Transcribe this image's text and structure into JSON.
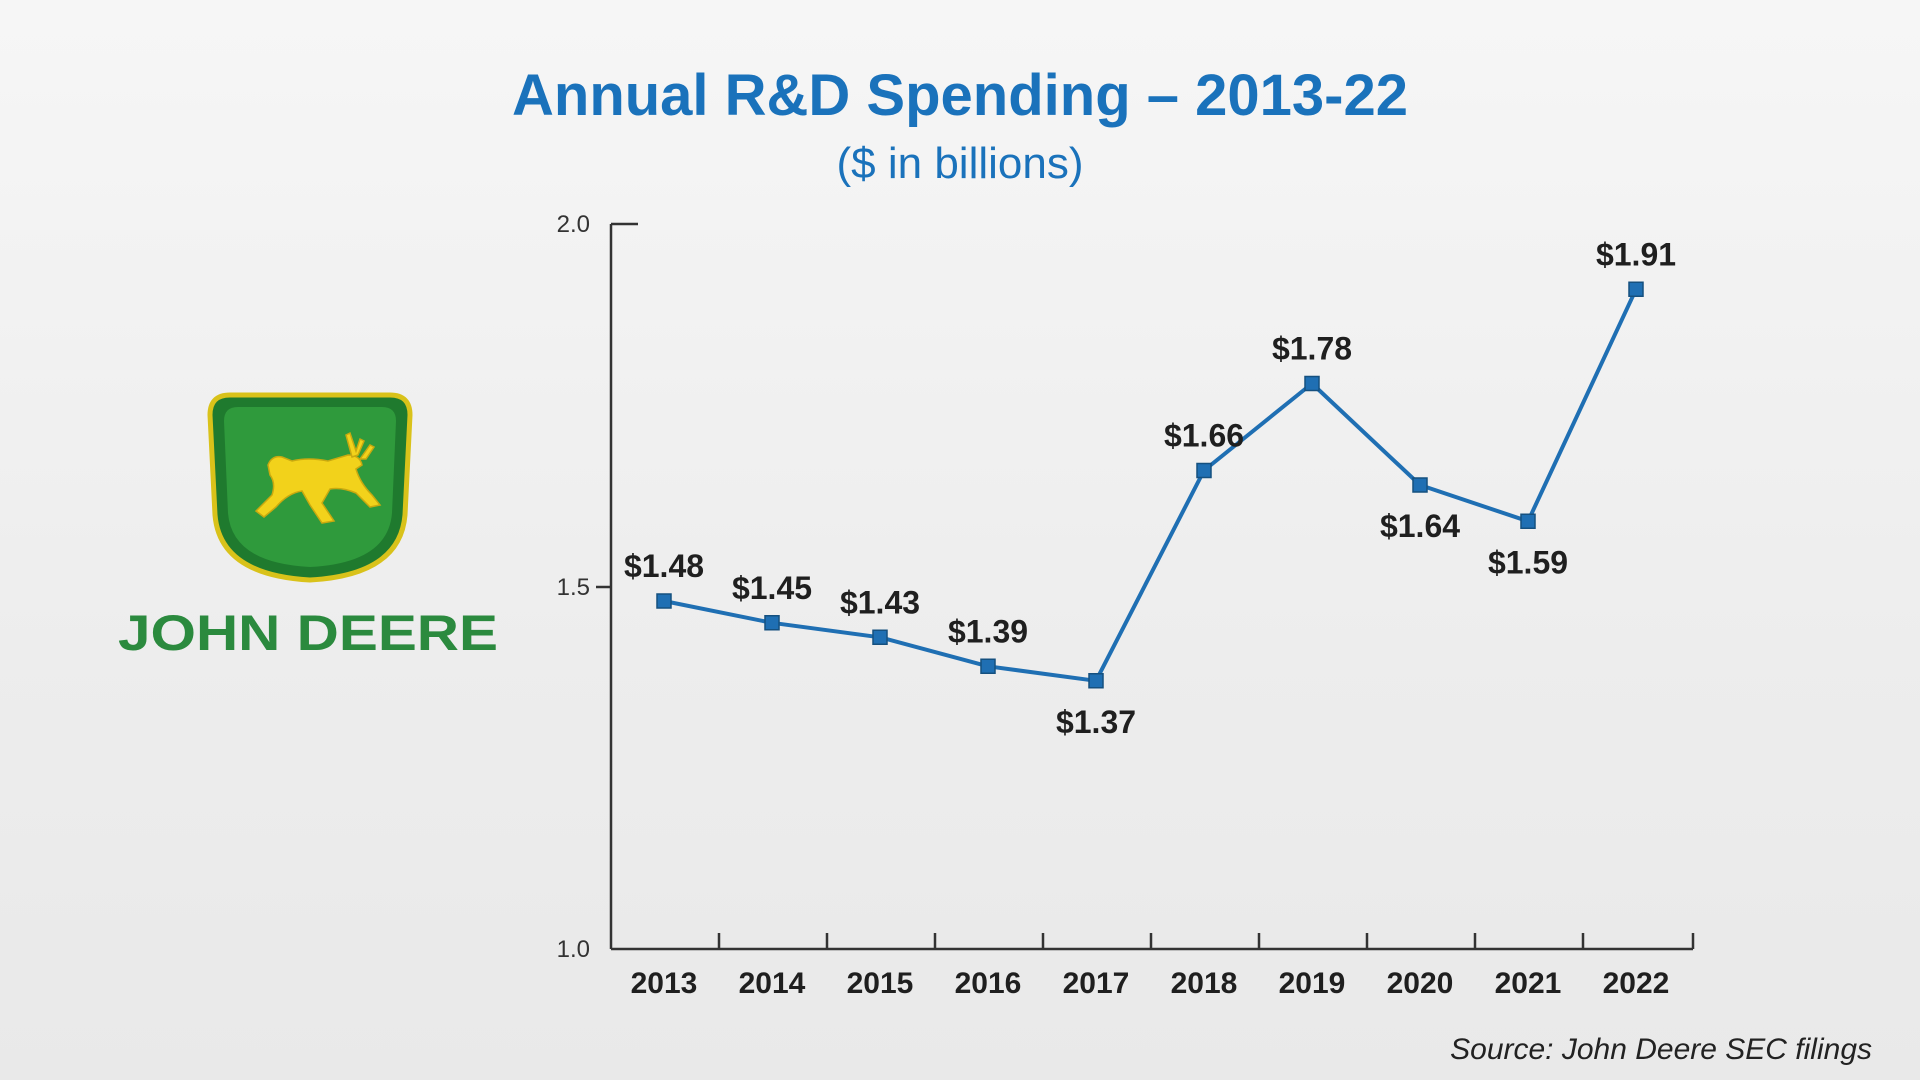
{
  "brand": {
    "name_main": "JOHN DEERE",
    "logo_icon": "leaping-deer-logo",
    "green": "#2b8a3e",
    "yellow": "#f2d21b"
  },
  "colors": {
    "title": "#1a72bb",
    "line": "#1f6fb3",
    "marker": "#1f6fb3",
    "axis": "#333333",
    "text": "#1f1f1f"
  },
  "source": "Source: John Deere SEC filings",
  "chart_data": {
    "type": "line",
    "title": "Annual R&D Spending – 2013-22",
    "subtitle": "($ in billions)",
    "xlabel": "",
    "ylabel": "",
    "ylim": [
      1.0,
      2.0
    ],
    "yticks": [
      "1.0",
      "1.5",
      "2.0"
    ],
    "categories": [
      "2013",
      "2014",
      "2015",
      "2016",
      "2017",
      "2018",
      "2019",
      "2020",
      "2021",
      "2022"
    ],
    "values": [
      1.48,
      1.45,
      1.43,
      1.39,
      1.37,
      1.66,
      1.78,
      1.64,
      1.59,
      1.91
    ],
    "data_labels": [
      "$1.48",
      "$1.45",
      "$1.43",
      "$1.39",
      "$1.37",
      "$1.66",
      "$1.78",
      "$1.64",
      "$1.59",
      "$1.91"
    ],
    "label_positions": [
      "above",
      "above",
      "above",
      "above",
      "below",
      "above",
      "above",
      "below",
      "below",
      "above"
    ],
    "grid": false,
    "legend": "none"
  }
}
